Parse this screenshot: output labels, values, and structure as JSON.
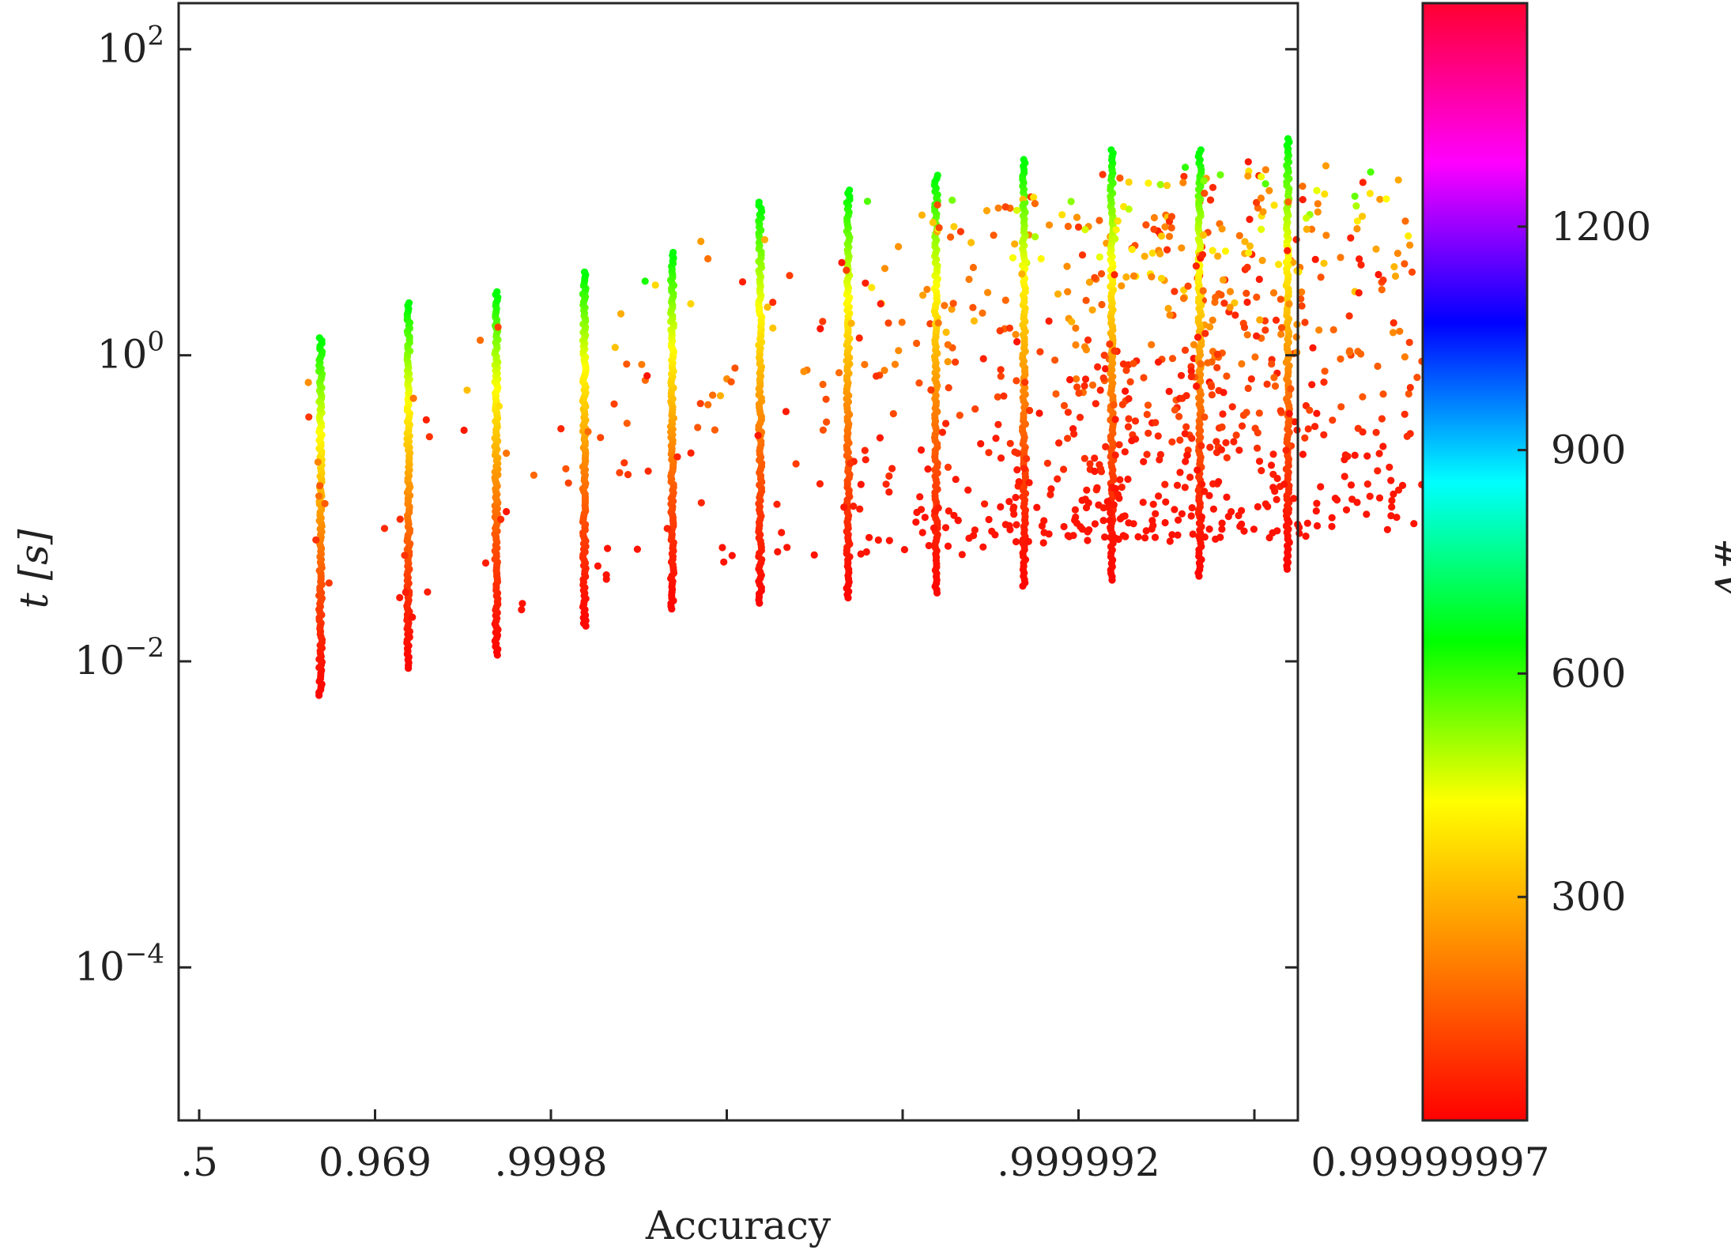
{
  "chart_data": {
    "type": "scatter",
    "xlabel": "Accuracy",
    "ylabel": "t [s]",
    "x_axis": {
      "note": "categorical/precision scale: positions are evenly spaced",
      "ticks": [
        ".5",
        "0.969",
        ".9998",
        "",
        "",
        ".999992",
        "",
        "0.99999997"
      ]
    },
    "y_axis": {
      "scale": "log",
      "ylim": [
        1e-05,
        200
      ],
      "ticks": [
        {
          "value": 100,
          "base": "10",
          "exp": "2"
        },
        {
          "value": 1,
          "base": "10",
          "exp": "0"
        },
        {
          "value": 0.01,
          "base": "10",
          "exp": "−2"
        },
        {
          "value": 0.0001,
          "base": "10",
          "exp": "−4"
        }
      ]
    },
    "colorbar": {
      "label": "#V",
      "range": [
        0,
        1500
      ],
      "ticks": [
        "300",
        "600",
        "900",
        "1200"
      ],
      "tick_values": [
        300,
        600,
        900,
        1200
      ],
      "colormap": [
        "#ff0000",
        "#ff8000",
        "#ffff00",
        "#00ff00",
        "#00ffff",
        "#0000ff",
        "#ff00ff",
        "#ff0030"
      ]
    },
    "columns": [
      {
        "x": 0.69,
        "tmin": 0.006,
        "tmax": 1.3,
        "outliers": 8
      },
      {
        "x": 1.19,
        "tmin": 0.009,
        "tmax": 2.2,
        "outliers": 10
      },
      {
        "x": 1.69,
        "tmin": 0.011,
        "tmax": 2.6,
        "outliers": 12
      },
      {
        "x": 2.19,
        "tmin": 0.017,
        "tmax": 3.5,
        "outliers": 14
      },
      {
        "x": 2.69,
        "tmin": 0.022,
        "tmax": 4.7,
        "outliers": 16
      },
      {
        "x": 3.19,
        "tmin": 0.024,
        "tmax": 10,
        "outliers": 20
      },
      {
        "x": 3.69,
        "tmin": 0.026,
        "tmax": 12,
        "outliers": 40
      },
      {
        "x": 4.19,
        "tmin": 0.028,
        "tmax": 15,
        "outliers": 60
      },
      {
        "x": 4.69,
        "tmin": 0.031,
        "tmax": 19,
        "outliers": 90
      },
      {
        "x": 5.19,
        "tmin": 0.034,
        "tmax": 22,
        "outliers": 160
      },
      {
        "x": 5.69,
        "tmin": 0.036,
        "tmax": 22,
        "outliers": 200
      },
      {
        "x": 6.19,
        "tmin": 0.04,
        "tmax": 26,
        "outliers": 240
      }
    ]
  }
}
